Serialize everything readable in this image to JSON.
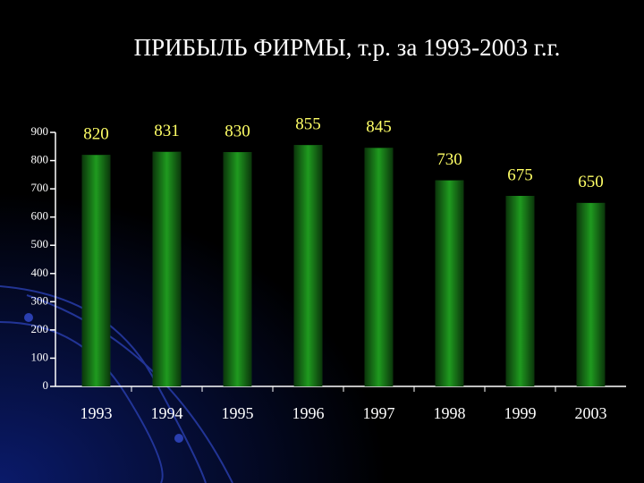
{
  "chart_data": {
    "type": "bar",
    "title": "ПРИБЫЛЬ ФИРМЫ, т.р. за 1993-2003 г.г.",
    "categories": [
      "1993",
      "1994",
      "1995",
      "1996",
      "1997",
      "1998",
      "1999",
      "2003"
    ],
    "values": [
      820,
      831,
      830,
      855,
      845,
      730,
      675,
      650
    ],
    "color": "#1f9a1f",
    "ylim": [
      0,
      900
    ],
    "yticks": [
      0,
      100,
      200,
      300,
      400,
      500,
      600,
      700,
      800,
      900
    ]
  }
}
